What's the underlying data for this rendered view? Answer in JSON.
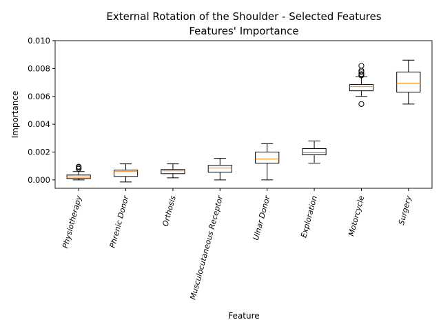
{
  "chart_data": {
    "type": "box",
    "title_line1": "External Rotation of the Shoulder - Selected Features",
    "title_line2": "Features' Importance",
    "xlabel": "Feature",
    "ylabel": "Importance",
    "ylim": [
      -0.0006,
      0.01
    ],
    "yticks": [
      0.0,
      0.002,
      0.004,
      0.006,
      0.008,
      0.01
    ],
    "ytick_labels": [
      "0.000",
      "0.002",
      "0.004",
      "0.006",
      "0.008",
      "0.010"
    ],
    "grid": false,
    "categories": [
      "Physiotherapy",
      "Phrenic Donor",
      "Orthosis",
      "Musculocutaneous Receptor",
      "Ulnar Donor",
      "Exploration",
      "Motorcycle",
      "Surgery"
    ],
    "boxes": [
      {
        "whisker_low": 0.0,
        "q1": 0.0001,
        "median": 0.0002,
        "q3": 0.00035,
        "whisker_high": 0.0006,
        "outliers": [
          0.0008,
          0.0009,
          0.00095
        ]
      },
      {
        "whisker_low": -0.00015,
        "q1": 0.00025,
        "median": 0.0006,
        "q3": 0.0007,
        "whisker_high": 0.00115,
        "outliers": []
      },
      {
        "whisker_low": 0.00015,
        "q1": 0.00045,
        "median": 0.00065,
        "q3": 0.00075,
        "whisker_high": 0.00115,
        "outliers": []
      },
      {
        "whisker_low": 0.0,
        "q1": 0.00055,
        "median": 0.00085,
        "q3": 0.00105,
        "whisker_high": 0.00155,
        "outliers": []
      },
      {
        "whisker_low": 0.0,
        "q1": 0.0012,
        "median": 0.0015,
        "q3": 0.002,
        "whisker_high": 0.0026,
        "outliers": []
      },
      {
        "whisker_low": 0.0012,
        "q1": 0.0018,
        "median": 0.00195,
        "q3": 0.00225,
        "whisker_high": 0.0028,
        "outliers": []
      },
      {
        "whisker_low": 0.006,
        "q1": 0.0064,
        "median": 0.0067,
        "q3": 0.00685,
        "whisker_high": 0.0074,
        "outliers": [
          0.00545,
          0.0075,
          0.0076,
          0.00775,
          0.00785,
          0.0082
        ]
      },
      {
        "whisker_low": 0.00545,
        "q1": 0.0063,
        "median": 0.00695,
        "q3": 0.00775,
        "whisker_high": 0.0086,
        "outliers": []
      }
    ],
    "colors": {
      "box_edge": "#000000",
      "median": "#ff7f0e",
      "axis": "#000000"
    }
  }
}
